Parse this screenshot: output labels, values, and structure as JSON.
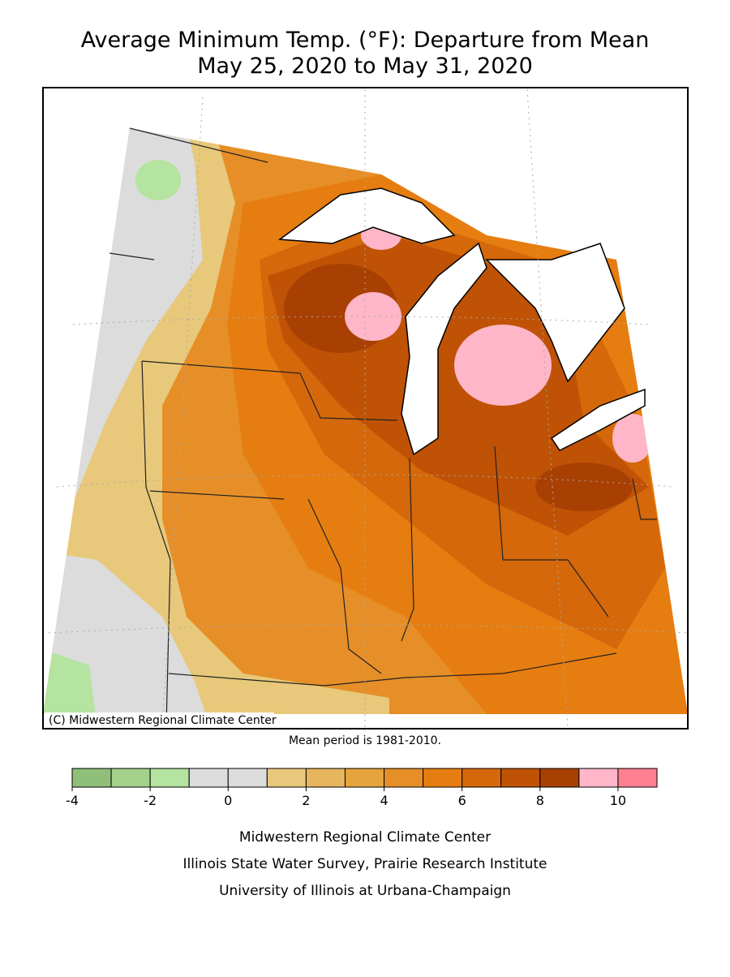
{
  "title": "Average Minimum Temp. (°F): Departure from Mean",
  "subtitle": "May 25, 2020 to May 31, 2020",
  "copyright": "(C) Midwestern Regional Climate Center",
  "note": "Mean period is 1981-2010.",
  "legend": {
    "bins": [
      -4,
      -3,
      -2,
      -1,
      0,
      1,
      2,
      3,
      4,
      5,
      6,
      7,
      8,
      9,
      10,
      11
    ],
    "colors": [
      "#8fbf78",
      "#a3d18a",
      "#b5e3a0",
      "#dcdcdc",
      "#dcdcdc",
      "#e8c87a",
      "#e6b55e",
      "#e6a43e",
      "#e68f28",
      "#e67d10",
      "#d4680a",
      "#bf5205",
      "#a84003",
      "#ffb6c8",
      "#ff8090"
    ],
    "ticks": [
      -4,
      -2,
      0,
      2,
      4,
      6,
      8,
      10
    ]
  },
  "footer": [
    "Midwestern Regional Climate Center",
    "Illinois State Water Survey, Prairie Research Institute",
    "University of Illinois at Urbana-Champaign"
  ]
}
